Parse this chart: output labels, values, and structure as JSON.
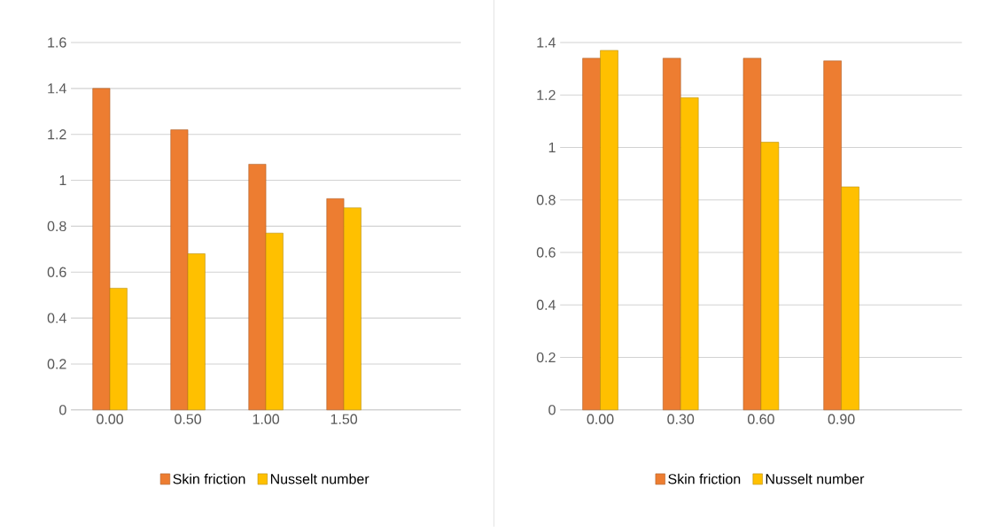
{
  "chart_data": [
    {
      "type": "bar",
      "categories": [
        "0.00",
        "0.50",
        "1.00",
        "1.50"
      ],
      "series": [
        {
          "name": "Skin friction",
          "color": "#ed7d31",
          "values": [
            1.4,
            1.22,
            1.07,
            0.92
          ]
        },
        {
          "name": "Nusselt number",
          "color": "#ffc000",
          "values": [
            0.53,
            0.68,
            0.77,
            0.88
          ]
        }
      ],
      "ylim": [
        0,
        1.6
      ],
      "yticks": [
        0,
        0.2,
        0.4,
        0.6,
        0.8,
        1,
        1.2,
        1.4,
        1.6
      ],
      "grid": "y",
      "legend": "bottom"
    },
    {
      "type": "bar",
      "categories": [
        "0.00",
        "0.30",
        "0.60",
        "0.90"
      ],
      "series": [
        {
          "name": "Skin friction",
          "color": "#ed7d31",
          "values": [
            1.34,
            1.34,
            1.34,
            1.33
          ]
        },
        {
          "name": "Nusselt number",
          "color": "#ffc000",
          "values": [
            1.37,
            1.19,
            1.02,
            0.85
          ]
        }
      ],
      "ylim": [
        0,
        1.4
      ],
      "yticks": [
        0,
        0.2,
        0.4,
        0.6,
        0.8,
        1,
        1.2,
        1.4
      ],
      "grid": "y",
      "legend": "bottom"
    }
  ]
}
